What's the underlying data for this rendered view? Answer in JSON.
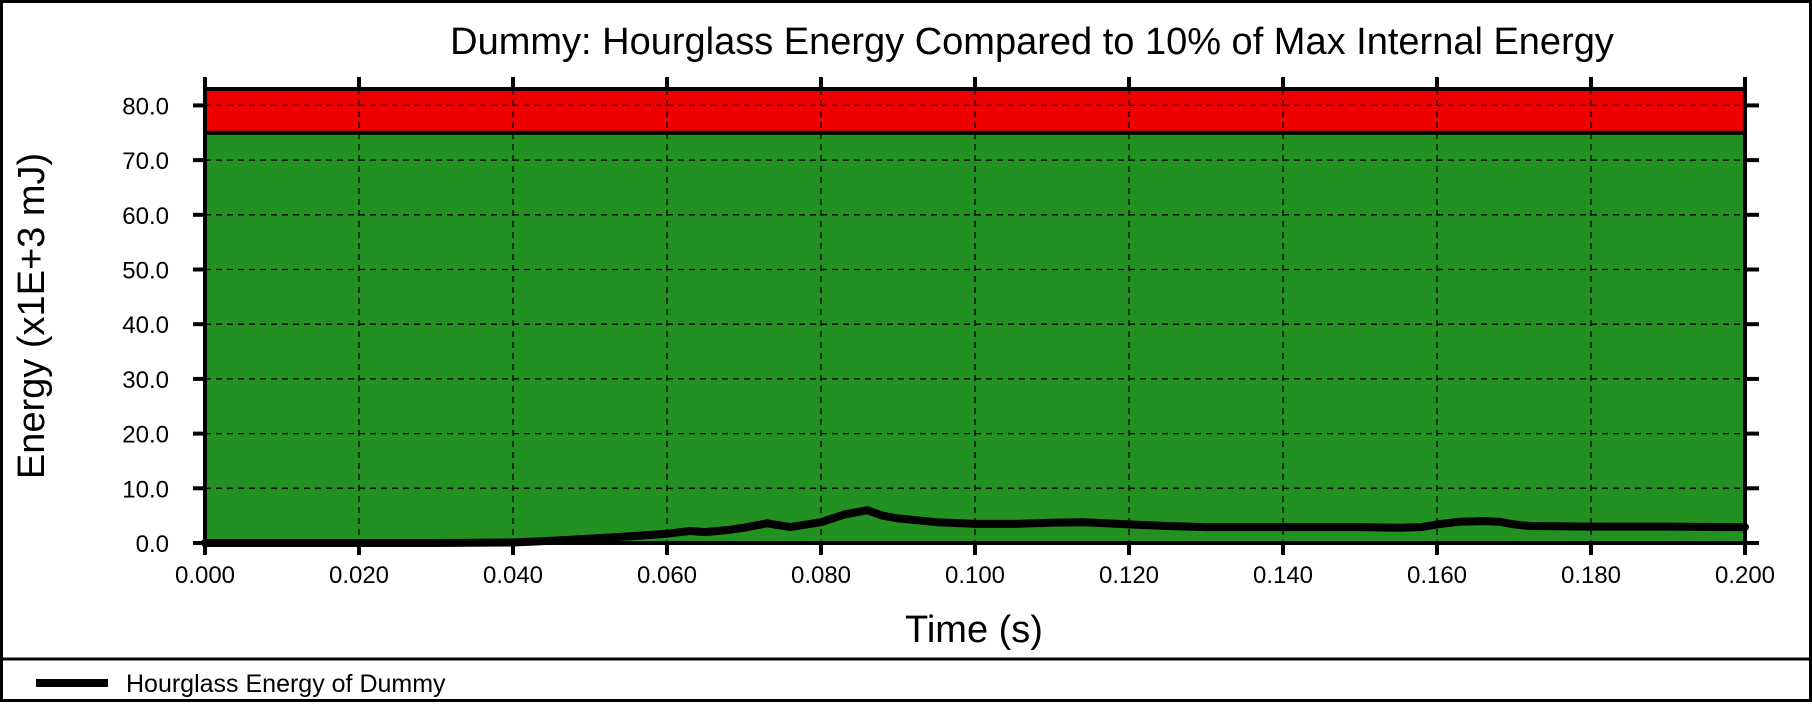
{
  "chart_data": {
    "type": "line",
    "title": "Dummy: Hourglass Energy Compared to 10% of Max Internal Energy",
    "xlabel": "Time (s)",
    "ylabel": "Energy (x1E+3 mJ)",
    "xlim": [
      0.0,
      0.2
    ],
    "ylim": [
      0.0,
      83.0
    ],
    "x_ticks": [
      "0.000",
      "0.020",
      "0.040",
      "0.060",
      "0.080",
      "0.100",
      "0.120",
      "0.140",
      "0.160",
      "0.180",
      "0.200"
    ],
    "y_ticks": [
      "0.0",
      "10.0",
      "20.0",
      "30.0",
      "40.0",
      "50.0",
      "60.0",
      "70.0",
      "80.0"
    ],
    "grid": true,
    "legend_position": "bottom",
    "threshold": 75.0,
    "colors": {
      "below_threshold": "#229122",
      "above_threshold": "#ee0000",
      "line": "#000000"
    },
    "series": [
      {
        "name": "Hourglass Energy of Dummy",
        "x": [
          0.0,
          0.01,
          0.02,
          0.03,
          0.04,
          0.045,
          0.05,
          0.055,
          0.06,
          0.063,
          0.065,
          0.068,
          0.07,
          0.073,
          0.076,
          0.08,
          0.083,
          0.086,
          0.088,
          0.09,
          0.095,
          0.1,
          0.105,
          0.11,
          0.114,
          0.12,
          0.125,
          0.13,
          0.14,
          0.15,
          0.155,
          0.158,
          0.16,
          0.163,
          0.166,
          0.168,
          0.17,
          0.172,
          0.18,
          0.19,
          0.2
        ],
        "y": [
          0.0,
          0.0,
          0.0,
          0.0,
          0.1,
          0.4,
          0.8,
          1.2,
          1.7,
          2.2,
          2.0,
          2.4,
          2.8,
          3.6,
          2.9,
          3.8,
          5.2,
          6.0,
          5.0,
          4.5,
          3.8,
          3.5,
          3.5,
          3.7,
          3.8,
          3.4,
          3.1,
          2.9,
          2.9,
          2.9,
          2.8,
          2.9,
          3.4,
          3.9,
          4.0,
          3.9,
          3.4,
          3.1,
          3.0,
          3.0,
          2.9
        ]
      }
    ]
  }
}
